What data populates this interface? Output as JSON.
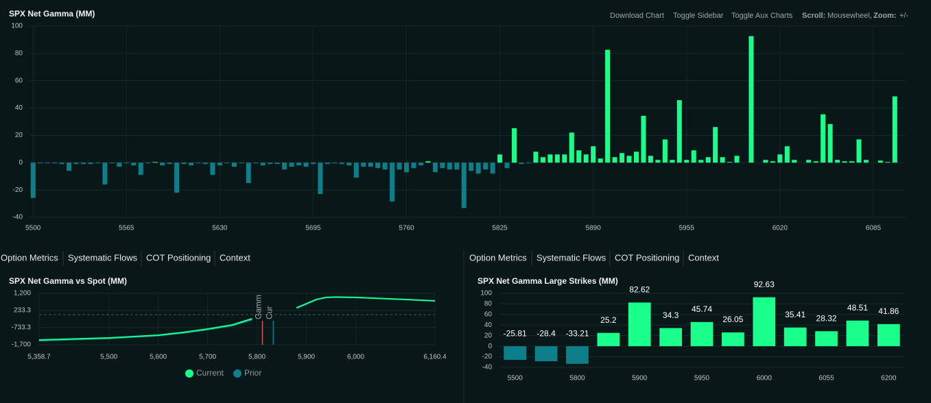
{
  "toolbar": {
    "download": "Download Chart",
    "sidebar": "Toggle Sidebar",
    "aux": "Toggle Aux Charts",
    "scroll_label": "Scroll:",
    "scroll_value": "Mousewheel,",
    "zoom_label": "Zoom:",
    "zoom_value": "+/-"
  },
  "tabs_left": [
    "Option Metrics",
    "Systematic Flows",
    "COT Positioning",
    "Context"
  ],
  "tabs_right": [
    "Option Metrics",
    "Systematic Flows",
    "COT Positioning",
    "Context"
  ],
  "chart_data": [
    {
      "type": "bar",
      "title": "SPX Net Gamma (MM)",
      "x": [
        5500,
        5505,
        5510,
        5515,
        5520,
        5525,
        5530,
        5535,
        5540,
        5545,
        5550,
        5555,
        5560,
        5565,
        5570,
        5575,
        5580,
        5585,
        5590,
        5595,
        5600,
        5605,
        5610,
        5615,
        5620,
        5625,
        5630,
        5635,
        5640,
        5645,
        5650,
        5655,
        5660,
        5665,
        5670,
        5675,
        5680,
        5685,
        5690,
        5695,
        5700,
        5705,
        5710,
        5715,
        5720,
        5725,
        5730,
        5735,
        5740,
        5745,
        5750,
        5755,
        5760,
        5765,
        5770,
        5775,
        5780,
        5785,
        5790,
        5795,
        5800,
        5805,
        5810,
        5815,
        5820,
        5825,
        5830,
        5835,
        5840,
        5845,
        5850,
        5855,
        5860,
        5865,
        5870,
        5875,
        5880,
        5885,
        5890,
        5895,
        5900,
        5905,
        5910,
        5915,
        5920,
        5925,
        5930,
        5935,
        5940,
        5945,
        5950,
        5955,
        5960,
        5965,
        5970,
        5975,
        5980,
        5985,
        5990,
        5995,
        6000,
        6005,
        6010,
        6015,
        6020,
        6025,
        6030,
        6035,
        6040,
        6045,
        6050,
        6055,
        6060,
        6065,
        6070,
        6075,
        6080,
        6085,
        6090,
        6095,
        6100
      ],
      "values": [
        -25.81,
        -0.5,
        -0.5,
        -0.5,
        -1,
        -6,
        -1,
        -1,
        -1,
        -0.5,
        -16,
        -0.5,
        -3,
        -0.5,
        -2,
        -9,
        -0.5,
        0.5,
        -2,
        -1,
        -22,
        -1,
        -2,
        -0.5,
        -1,
        -9,
        -2,
        -0.5,
        -3,
        -0.5,
        -15,
        -0.5,
        -2,
        -1,
        -1,
        -5,
        -3,
        -2,
        -3,
        -1,
        -23,
        -1,
        -0.5,
        -1,
        -2,
        -11,
        -3,
        -3,
        -4,
        -5,
        -28.4,
        -5,
        -7,
        -4,
        -2,
        1,
        -7,
        -4,
        -5,
        -5,
        -33.21,
        -6,
        -8,
        -5,
        -8,
        6,
        -4,
        25.2,
        -1,
        -0.5,
        8,
        4,
        6,
        6,
        6,
        22,
        9,
        6,
        12,
        3,
        82.62,
        4,
        7,
        5,
        8,
        34.3,
        5,
        2,
        17,
        2,
        45.74,
        2,
        9,
        2,
        4,
        26.05,
        4,
        0.5,
        5,
        0,
        92.63,
        0,
        2,
        1,
        6,
        12,
        2,
        0,
        2,
        1,
        35.41,
        28.32,
        2,
        1,
        1,
        17,
        2,
        0,
        1.5,
        0.5,
        48.51
      ],
      "colors": {
        "positive": "#1aff8c",
        "negative": "#0d7f8a"
      },
      "xlim": [
        5497.5,
        6107.5
      ],
      "xticks": [
        5500,
        5565,
        5630,
        5695,
        5760,
        5825,
        5890,
        5955,
        6020,
        6085
      ],
      "ylim": [
        -40,
        100
      ],
      "yticks": [
        -40,
        -20,
        0,
        20,
        40,
        60,
        80,
        100
      ],
      "grid": true
    },
    {
      "type": "line",
      "title": "SPX Net Gamma vs Spot (MM)",
      "x": [
        5358.7,
        5500,
        5600,
        5650,
        5700,
        5750,
        5790,
        5835,
        5880,
        5900,
        5920,
        5940,
        5960,
        6000,
        6050,
        6100,
        6160.4
      ],
      "series": [
        {
          "name": "Current",
          "color": "#1aff8c",
          "values": [
            -1430,
            -1313,
            -1159,
            -1004,
            -811,
            -579,
            -230,
            null,
            388,
            620,
            852,
            968,
            987,
            968,
            910,
            852,
            775
          ]
        },
        {
          "name": "Prior",
          "color": "#0d7f8a",
          "values": [
            -1470,
            -1350,
            -1190,
            -1040,
            -850,
            -620,
            -290,
            null,
            350,
            590,
            840,
            975,
            995,
            975,
            915,
            855,
            780
          ]
        }
      ],
      "xlim": [
        5358.7,
        6160.4
      ],
      "xticks": [
        {
          "value": 5358.7,
          "label": "5,358.7"
        },
        {
          "value": 5500,
          "label": "5,500"
        },
        {
          "value": 5600,
          "label": "5,600"
        },
        {
          "value": 5700,
          "label": "5,700"
        },
        {
          "value": 5800,
          "label": "5,800"
        },
        {
          "value": 5900,
          "label": "5,900"
        },
        {
          "value": 6000,
          "label": "6,000"
        },
        {
          "value": 6160.4,
          "label": "6,160.4"
        }
      ],
      "ylim": [
        -1700,
        1200
      ],
      "yticks": [
        {
          "value": -1700,
          "label": "-1,700"
        },
        -733.3,
        233.3,
        {
          "value": 1200,
          "label": "1,200"
        }
      ],
      "hline": 0,
      "annotations": [
        {
          "text": "Gamm",
          "x": 5811,
          "color": "#e0505a"
        },
        {
          "text": "Cur",
          "x": 5833,
          "color": "#0d7f8a"
        }
      ],
      "legend": "bottom",
      "grid": true
    },
    {
      "type": "bar",
      "title": "SPX Net Gamma Large Strikes (MM)",
      "categories": [
        5500,
        null,
        5800,
        null,
        5900,
        null,
        5950,
        null,
        6000,
        null,
        6055,
        null,
        6200
      ],
      "values": [
        -25.81,
        -28.4,
        -33.21,
        25.2,
        82.62,
        34.3,
        45.74,
        26.05,
        92.63,
        35.41,
        28.32,
        48.51,
        41.86
      ],
      "colors": {
        "positive": "#1aff8c",
        "negative": "#0d7f8a"
      },
      "ylim": [
        -40,
        100
      ],
      "yticks": [
        -40,
        -20,
        0,
        20,
        40,
        60,
        80,
        100
      ],
      "grid": true,
      "show_values": true
    }
  ]
}
